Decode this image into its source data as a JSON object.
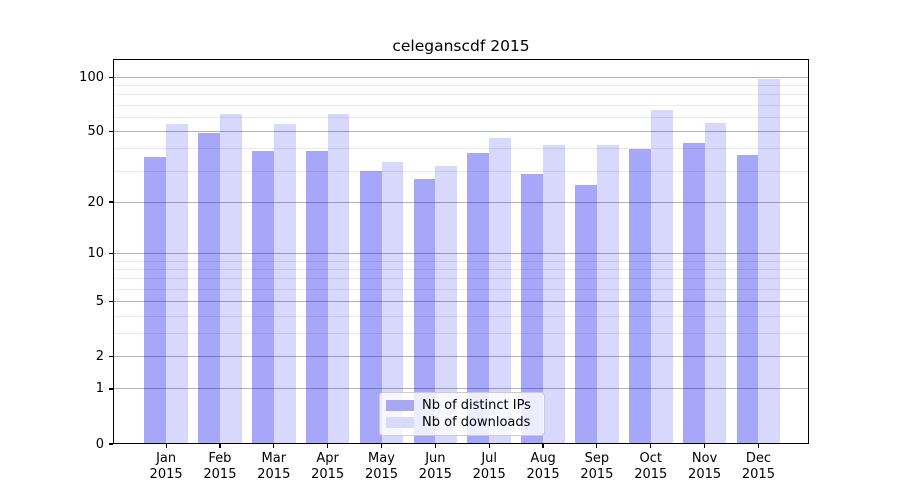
{
  "chart_data": {
    "type": "bar",
    "title": "celeganscdf 2015",
    "categories": [
      "Jan 2015",
      "Feb 2015",
      "Mar 2015",
      "Apr 2015",
      "May 2015",
      "Jun 2015",
      "Jul 2015",
      "Aug 2015",
      "Sep 2015",
      "Oct 2015",
      "Nov 2015",
      "Dec 2015"
    ],
    "x_tick_months": [
      "Jan",
      "Feb",
      "Mar",
      "Apr",
      "May",
      "Jun",
      "Jul",
      "Aug",
      "Sep",
      "Oct",
      "Nov",
      "Dec"
    ],
    "x_tick_year": "2015",
    "series": [
      {
        "key": "distinct-ips",
        "name": "Nb of distinct IPs",
        "color": "rgba(13,13,242,0.365)",
        "solid_color": "#a7a7f3",
        "values": [
          36,
          49,
          39,
          39,
          30,
          27,
          38,
          29,
          25,
          40,
          43,
          37
        ]
      },
      {
        "key": "downloads",
        "name": "Nb of downloads",
        "color": "rgba(13,13,242,0.16)",
        "solid_color": "#dadaf9",
        "values": [
          55,
          63,
          55,
          63,
          34,
          32,
          46,
          42,
          42,
          66,
          56,
          98
        ]
      }
    ],
    "y_scale": "log1p",
    "y_major_ticks": [
      0,
      1,
      2,
      5,
      10,
      20,
      50,
      100
    ],
    "y_minor_gridlines": [
      3,
      4,
      6,
      7,
      8,
      9,
      30,
      40,
      60,
      70,
      80,
      90
    ],
    "ylim": [
      0,
      124
    ],
    "grid": true,
    "legend_position": "lower center"
  },
  "colors": {
    "major_grid": "#b3b3b3",
    "minor_grid": "#e9e9e9",
    "axis": "#000000",
    "background": "#ffffff"
  }
}
